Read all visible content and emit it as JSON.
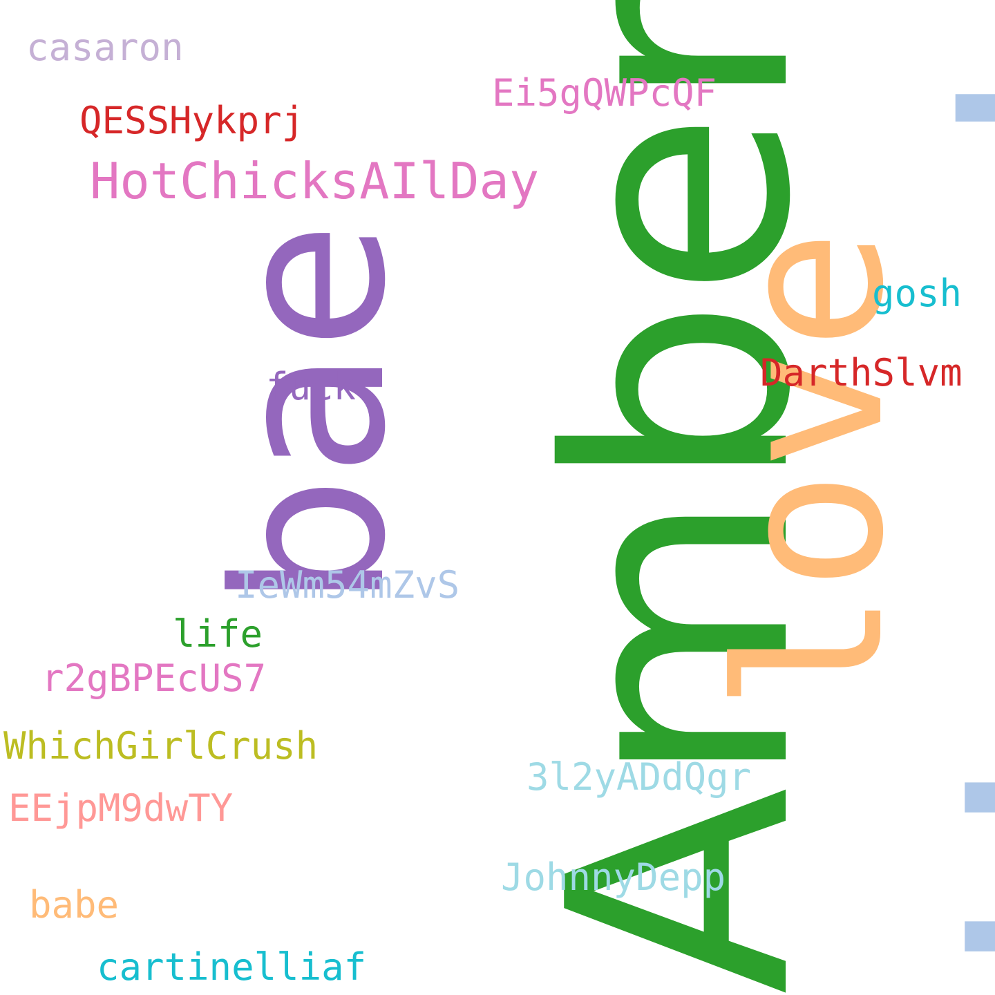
{
  "words": {
    "heard": {
      "text": "Heard",
      "color": "#aec7e8",
      "orientation": "vertical"
    },
    "amber": {
      "text": "Amber",
      "color": "#2ca02c",
      "orientation": "vertical"
    },
    "bae": {
      "text": "bae",
      "color": "#9467bd",
      "orientation": "vertical"
    },
    "love": {
      "text": "love",
      "color": "#ffbb78",
      "orientation": "vertical"
    },
    "casaron": {
      "text": "casaron",
      "color": "#c5b0d5"
    },
    "ei5g": {
      "text": "Ei5gQWPcQF",
      "color": "#e377c2"
    },
    "qess": {
      "text": "QESSHykprj",
      "color": "#d62728"
    },
    "hotchicks": {
      "text": "HotChicksAIlDay",
      "color": "#e377c2"
    },
    "gosh": {
      "text": "gosh",
      "color": "#17becf"
    },
    "darth": {
      "text": "DarthSlvm",
      "color": "#d62728"
    },
    "fuck": {
      "text": "fuck",
      "color": "#9467bd"
    },
    "iewm": {
      "text": "IeWm54mZvS",
      "color": "#aec7e8"
    },
    "life": {
      "text": "life",
      "color": "#2ca02c"
    },
    "r2g": {
      "text": "r2gBPEcUS7",
      "color": "#e377c2"
    },
    "which": {
      "text": "WhichGirlCrush",
      "color": "#bcbd22"
    },
    "3l2": {
      "text": "3l2yADdQgr",
      "color": "#9edae5"
    },
    "eej": {
      "text": "EEjpM9dwTY",
      "color": "#ff9896"
    },
    "johnny": {
      "text": "JohnnyDepp",
      "color": "#9edae5"
    },
    "babe": {
      "text": "babe",
      "color": "#ffbb78"
    },
    "cartinelli": {
      "text": "cartinelliaf",
      "color": "#17becf"
    }
  }
}
